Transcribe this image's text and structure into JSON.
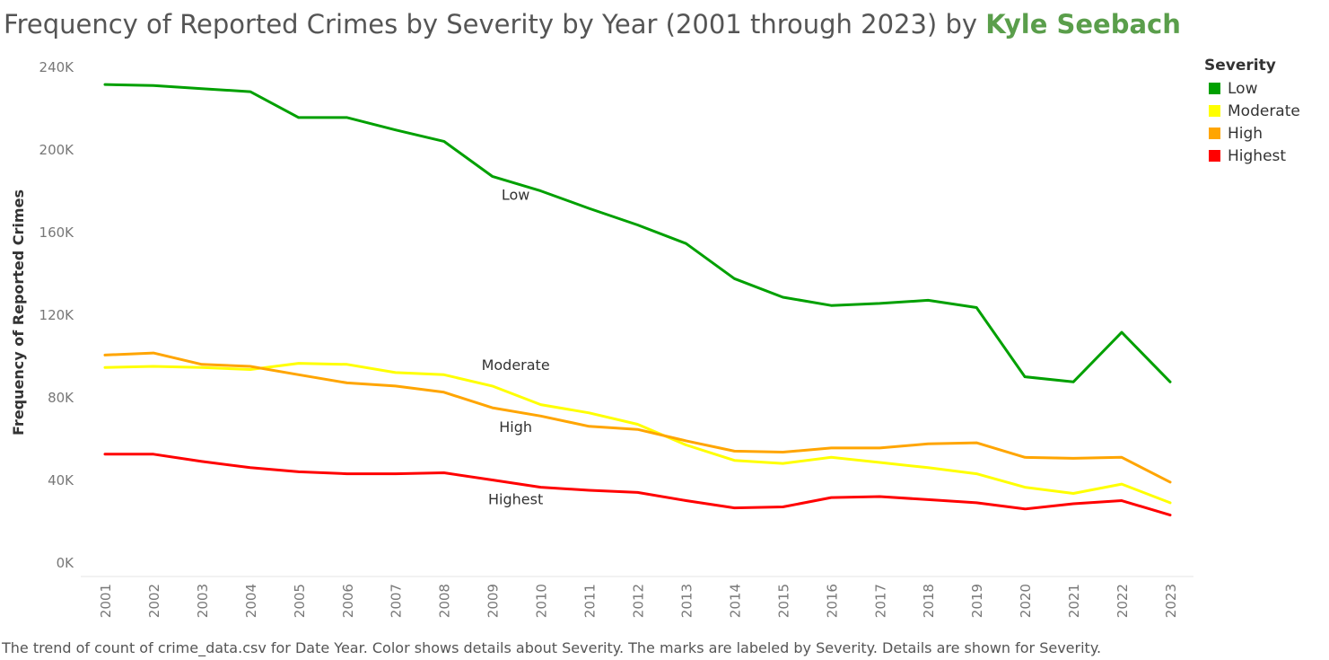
{
  "title": {
    "text": "Frequency of Reported Crimes by Severity by Year (2001 through 2023) by ",
    "author": "Kyle Seebach"
  },
  "caption": "The trend of count of crime_data.csv for Date Year.  Color shows details about Severity.  The marks are labeled by Severity.  Details are shown for Severity.",
  "legend": {
    "title": "Severity",
    "items": [
      {
        "label": "Low",
        "color": "#00a000"
      },
      {
        "label": "Moderate",
        "color": "#ffff00"
      },
      {
        "label": "High",
        "color": "#ffa500"
      },
      {
        "label": "Highest",
        "color": "#ff0000"
      }
    ]
  },
  "chart_data": {
    "type": "line",
    "title": "Frequency of Reported Crimes by Severity by Year (2001 through 2023) by Kyle Seebach",
    "xlabel": "",
    "ylabel": "Frequency of Reported Crimes",
    "ylim": [
      0,
      240000
    ],
    "yticks": [
      0,
      40000,
      80000,
      120000,
      160000,
      200000,
      240000
    ],
    "ytick_labels": [
      "0K",
      "40K",
      "80K",
      "120K",
      "160K",
      "200K",
      "240K"
    ],
    "grid": false,
    "legend_position": "top-right",
    "x": [
      "2001",
      "2002",
      "2003",
      "2004",
      "2005",
      "2006",
      "2007",
      "2008",
      "2009",
      "2010",
      "2011",
      "2012",
      "2013",
      "2014",
      "2015",
      "2016",
      "2017",
      "2018",
      "2019",
      "2020",
      "2021",
      "2022",
      "2023"
    ],
    "series": [
      {
        "name": "Low",
        "color": "#00a000",
        "label_index": 8,
        "values": [
          233000,
          232500,
          231000,
          229500,
          217000,
          217000,
          211000,
          205500,
          188500,
          181500,
          173000,
          165000,
          156000,
          139000,
          130000,
          126000,
          127000,
          128500,
          125000,
          91500,
          89000,
          113000,
          89000
        ]
      },
      {
        "name": "Moderate",
        "color": "#ffff00",
        "label_index": 8,
        "values": [
          96000,
          96500,
          96000,
          95000,
          98000,
          97500,
          93500,
          92500,
          87000,
          78000,
          74000,
          68500,
          58500,
          51000,
          49500,
          52500,
          50000,
          47500,
          44500,
          38000,
          35000,
          39500,
          30500
        ]
      },
      {
        "name": "High",
        "color": "#ffa500",
        "label_index": 8,
        "values": [
          102000,
          103000,
          97500,
          96500,
          92500,
          88500,
          87000,
          84000,
          76500,
          72500,
          67500,
          66000,
          60500,
          55500,
          55000,
          57000,
          57000,
          59000,
          59500,
          52500,
          52000,
          52500,
          40500
        ]
      },
      {
        "name": "Highest",
        "color": "#ff0000",
        "label_index": 8,
        "values": [
          54000,
          54000,
          50500,
          47500,
          45500,
          44500,
          44500,
          45000,
          41500,
          38000,
          36500,
          35500,
          31500,
          28000,
          28500,
          33000,
          33500,
          32000,
          30500,
          27500,
          30000,
          31500,
          24500
        ]
      }
    ]
  }
}
